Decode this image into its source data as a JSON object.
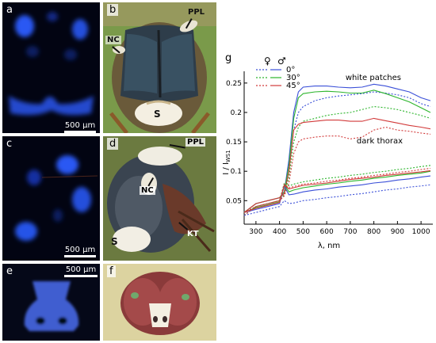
{
  "panels": {
    "a": {
      "label": "a",
      "scale": "500 µm"
    },
    "b": {
      "label": "b",
      "annotations": {
        "ppl": "PPL",
        "nc": "NC",
        "s": "S"
      }
    },
    "c": {
      "label": "c",
      "scale": "500 µm"
    },
    "d": {
      "label": "d",
      "annotations": {
        "ppl": "PPL",
        "nc": "NC",
        "kt": "KT",
        "s": "S"
      }
    },
    "e": {
      "label": "e",
      "scale": "500 µm"
    },
    "f": {
      "label": "f"
    }
  },
  "chart_data": {
    "type": "line",
    "panel_label": "g",
    "title": "",
    "xlabel": "λ, nm",
    "ylabel": "I / I",
    "ylabel_sub": "WS1",
    "xlim": [
      250,
      1050
    ],
    "ylim": [
      0.01,
      0.27
    ],
    "xticks": [
      300,
      400,
      500,
      600,
      700,
      800,
      900,
      1000
    ],
    "yticks": [
      0.05,
      0.1,
      0.15,
      0.2,
      0.25
    ],
    "ytick_labels": [
      "0.05",
      "0.1",
      "0.15",
      "0.2",
      "0.25"
    ],
    "grid": false,
    "legend": {
      "placement": "top-left",
      "header_female": "♀",
      "header_male": "♂",
      "angles": [
        "0°",
        "30°",
        "45°"
      ],
      "colors": [
        "#3a4fd8",
        "#2cb52c",
        "#d23a3a"
      ]
    },
    "annotations": {
      "white": "white patches",
      "dark": "dark thorax"
    },
    "x": [
      250,
      300,
      350,
      400,
      420,
      440,
      460,
      480,
      500,
      550,
      600,
      650,
      700,
      750,
      800,
      850,
      900,
      950,
      1000,
      1040
    ],
    "series": [
      {
        "group": "white",
        "sex": "female",
        "angle": "0°",
        "color": "#3a4fd8",
        "dash": true,
        "values": [
          0.025,
          0.04,
          0.045,
          0.05,
          0.06,
          0.1,
          0.17,
          0.2,
          0.21,
          0.22,
          0.225,
          0.228,
          0.23,
          0.232,
          0.235,
          0.233,
          0.23,
          0.225,
          0.215,
          0.21
        ]
      },
      {
        "group": "white",
        "sex": "male",
        "angle": "0°",
        "color": "#3a4fd8",
        "dash": false,
        "values": [
          0.03,
          0.045,
          0.05,
          0.055,
          0.065,
          0.12,
          0.2,
          0.235,
          0.243,
          0.245,
          0.245,
          0.243,
          0.242,
          0.243,
          0.248,
          0.245,
          0.24,
          0.235,
          0.225,
          0.22
        ]
      },
      {
        "group": "white",
        "sex": "female",
        "angle": "30°",
        "color": "#2cb52c",
        "dash": true,
        "values": [
          0.025,
          0.04,
          0.045,
          0.05,
          0.06,
          0.09,
          0.15,
          0.175,
          0.185,
          0.19,
          0.195,
          0.198,
          0.2,
          0.205,
          0.21,
          0.208,
          0.205,
          0.2,
          0.195,
          0.19
        ]
      },
      {
        "group": "white",
        "sex": "male",
        "angle": "30°",
        "color": "#2cb52c",
        "dash": false,
        "values": [
          0.03,
          0.045,
          0.05,
          0.055,
          0.065,
          0.11,
          0.19,
          0.225,
          0.232,
          0.235,
          0.236,
          0.235,
          0.233,
          0.233,
          0.238,
          0.232,
          0.225,
          0.218,
          0.208,
          0.2
        ]
      },
      {
        "group": "white",
        "sex": "female",
        "angle": "45°",
        "color": "#d23a3a",
        "dash": true,
        "values": [
          0.025,
          0.04,
          0.045,
          0.05,
          0.058,
          0.08,
          0.13,
          0.15,
          0.155,
          0.158,
          0.16,
          0.16,
          0.155,
          0.158,
          0.17,
          0.175,
          0.17,
          0.168,
          0.165,
          0.163
        ]
      },
      {
        "group": "white",
        "sex": "male",
        "angle": "45°",
        "color": "#d23a3a",
        "dash": false,
        "values": [
          0.03,
          0.045,
          0.05,
          0.055,
          0.062,
          0.1,
          0.17,
          0.18,
          0.183,
          0.185,
          0.187,
          0.187,
          0.185,
          0.185,
          0.19,
          0.186,
          0.182,
          0.178,
          0.175,
          0.172
        ]
      },
      {
        "group": "dark",
        "sex": "female",
        "angle": "0°",
        "color": "#3a4fd8",
        "dash": true,
        "values": [
          0.025,
          0.03,
          0.035,
          0.04,
          0.05,
          0.045,
          0.046,
          0.048,
          0.05,
          0.052,
          0.055,
          0.057,
          0.06,
          0.062,
          0.065,
          0.068,
          0.07,
          0.073,
          0.075,
          0.077
        ]
      },
      {
        "group": "dark",
        "sex": "male",
        "angle": "0°",
        "color": "#3a4fd8",
        "dash": false,
        "values": [
          0.03,
          0.035,
          0.04,
          0.045,
          0.075,
          0.06,
          0.061,
          0.063,
          0.065,
          0.068,
          0.07,
          0.073,
          0.075,
          0.077,
          0.08,
          0.082,
          0.085,
          0.087,
          0.09,
          0.092
        ]
      },
      {
        "group": "dark",
        "sex": "female",
        "angle": "30°",
        "color": "#2cb52c",
        "dash": true,
        "values": [
          0.03,
          0.04,
          0.045,
          0.05,
          0.08,
          0.075,
          0.078,
          0.08,
          0.082,
          0.085,
          0.088,
          0.09,
          0.093,
          0.095,
          0.098,
          0.1,
          0.103,
          0.105,
          0.108,
          0.11
        ]
      },
      {
        "group": "dark",
        "sex": "male",
        "angle": "30°",
        "color": "#2cb52c",
        "dash": false,
        "values": [
          0.03,
          0.038,
          0.043,
          0.048,
          0.077,
          0.065,
          0.068,
          0.07,
          0.072,
          0.075,
          0.078,
          0.08,
          0.083,
          0.085,
          0.088,
          0.09,
          0.093,
          0.095,
          0.097,
          0.1
        ]
      },
      {
        "group": "dark",
        "sex": "female",
        "angle": "45°",
        "color": "#d23a3a",
        "dash": true,
        "values": [
          0.03,
          0.04,
          0.045,
          0.05,
          0.078,
          0.072,
          0.074,
          0.076,
          0.078,
          0.08,
          0.083,
          0.085,
          0.088,
          0.09,
          0.093,
          0.095,
          0.098,
          0.1,
          0.103,
          0.105
        ]
      },
      {
        "group": "dark",
        "sex": "male",
        "angle": "45°",
        "color": "#d23a3a",
        "dash": false,
        "values": [
          0.03,
          0.037,
          0.042,
          0.047,
          0.076,
          0.07,
          0.072,
          0.074,
          0.076,
          0.078,
          0.08,
          0.083,
          0.086,
          0.088,
          0.09,
          0.093,
          0.095,
          0.097,
          0.099,
          0.101
        ]
      }
    ]
  }
}
